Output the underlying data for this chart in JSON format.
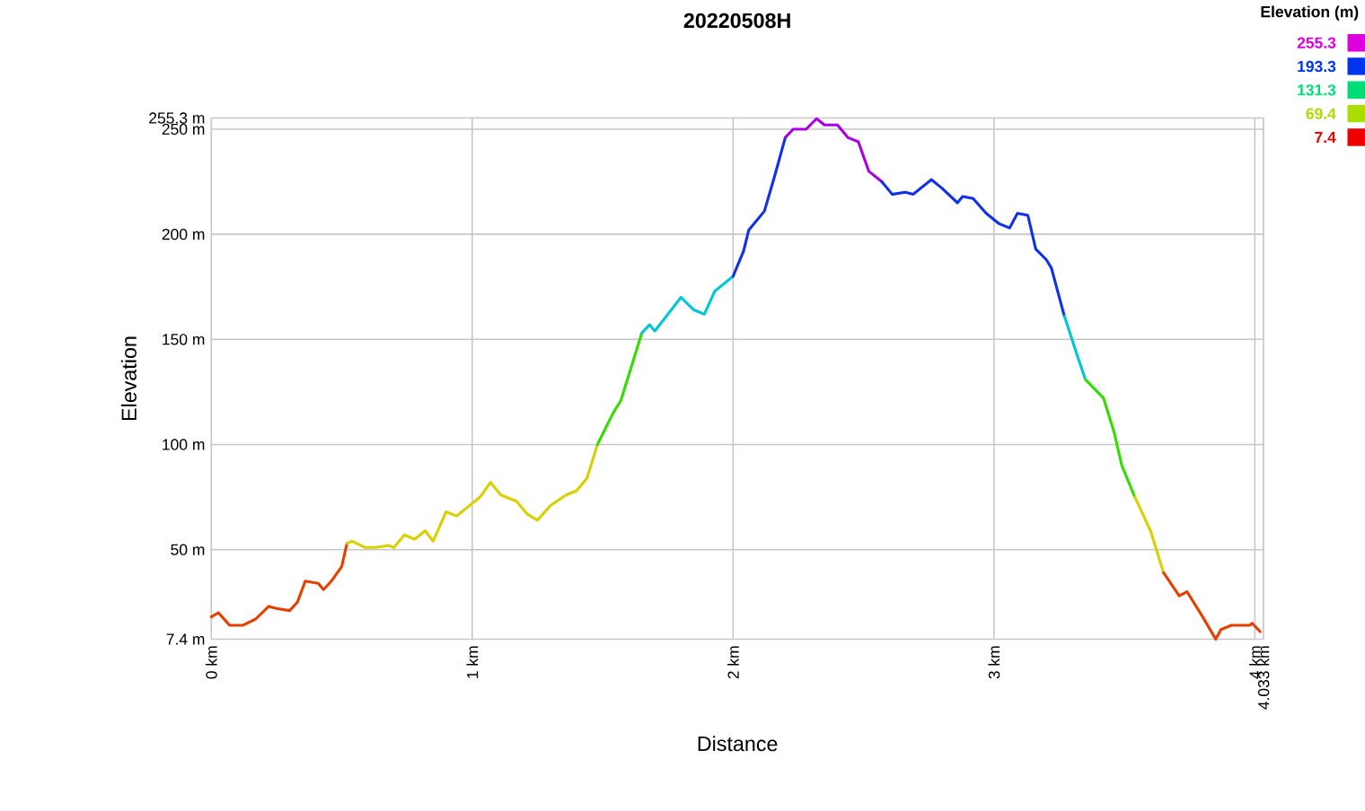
{
  "chart_data": {
    "type": "line",
    "title": "20220508H",
    "xlabel": "Distance",
    "ylabel": "Elevation",
    "clabel": "Elevation (m)",
    "cticks": [
      7.4,
      69.4,
      131.3,
      193.3,
      255.3
    ],
    "colors": [
      "#ee0000",
      "#aadd00",
      "#00dd77",
      "#0033ee",
      "#dd00dd"
    ],
    "xlim": [
      0,
      4.033
    ],
    "ylim": [
      7.4,
      255.3
    ],
    "xticks": [
      {
        "value": 0,
        "label": "0 km"
      },
      {
        "value": 1,
        "label": "1 km"
      },
      {
        "value": 2,
        "label": "2 km"
      },
      {
        "value": 3,
        "label": "3 km"
      },
      {
        "value": 4,
        "label": "4 km"
      },
      {
        "value": 4.033,
        "label": "4.033 km"
      }
    ],
    "yticks": [
      {
        "value": 7.4,
        "label": "7.4 m"
      },
      {
        "value": 50,
        "label": "50 m"
      },
      {
        "value": 100,
        "label": "100 m"
      },
      {
        "value": 150,
        "label": "150 m"
      },
      {
        "value": 200,
        "label": "200 m"
      },
      {
        "value": 250,
        "label": "250 m"
      },
      {
        "value": 255.3,
        "label": "255.3 m"
      }
    ],
    "grid": true,
    "marker": "none",
    "series": [
      {
        "color": "#e64000",
        "x": [
          0,
          0.027,
          0.07,
          0.12,
          0.17,
          0.22,
          0.25,
          0.3,
          0.33,
          0.36,
          0.41,
          0.43,
          0.46,
          0.5,
          0.52
        ],
        "values": [
          18,
          20,
          14,
          14,
          17,
          23,
          22,
          21,
          25,
          35,
          34,
          31,
          35,
          42,
          53
        ]
      },
      {
        "color": "#d8d000",
        "x": [
          0.52,
          0.54,
          0.59,
          0.63,
          0.68,
          0.7,
          0.74,
          0.78,
          0.82,
          0.85,
          0.9,
          0.94,
          1.0,
          1.03,
          1.07,
          1.11,
          1.17,
          1.21,
          1.25,
          1.3,
          1.36,
          1.4,
          1.44,
          1.48
        ],
        "values": [
          53,
          54,
          51,
          51,
          52,
          51,
          57,
          55,
          59,
          54,
          68,
          66,
          72,
          75,
          82,
          76,
          73,
          67,
          64,
          71,
          76,
          78,
          84,
          100
        ]
      },
      {
        "color": "#33dd00",
        "x": [
          1.48,
          1.54,
          1.57,
          1.65
        ],
        "values": [
          100,
          115,
          121,
          153
        ]
      },
      {
        "color": "#00c8d0",
        "x": [
          1.65,
          1.68,
          1.7,
          1.75,
          1.8,
          1.85,
          1.89,
          1.93,
          2.0
        ],
        "values": [
          153,
          157,
          154,
          162,
          170,
          164,
          162,
          173,
          180
        ]
      },
      {
        "color": "#1030ee",
        "x": [
          2.0,
          2.04,
          2.06,
          2.12,
          2.16,
          2.2
        ],
        "values": [
          180,
          192,
          202,
          211,
          228,
          246
        ]
      },
      {
        "color": "#aa00e8",
        "x": [
          2.2,
          2.23,
          2.28,
          2.32,
          2.35,
          2.4,
          2.44,
          2.48,
          2.52,
          2.57
        ],
        "values": [
          246,
          250,
          250,
          255,
          252,
          252,
          246,
          244,
          230,
          225
        ]
      },
      {
        "color": "#1030ee",
        "x": [
          2.57,
          2.61,
          2.66,
          2.69,
          2.76,
          2.8,
          2.86,
          2.88,
          2.92,
          2.97,
          3.02,
          3.06,
          3.09,
          3.13,
          3.16,
          3.2,
          3.22,
          3.27
        ],
        "values": [
          225,
          219,
          220,
          219,
          226,
          222,
          215,
          218,
          217,
          210,
          205,
          203,
          210,
          209,
          193,
          188,
          184,
          161
        ]
      },
      {
        "color": "#00c8d0",
        "x": [
          3.27,
          3.32,
          3.35
        ],
        "values": [
          161,
          142,
          131
        ]
      },
      {
        "color": "#33dd00",
        "x": [
          3.35,
          3.42,
          3.46,
          3.49,
          3.54
        ],
        "values": [
          131,
          122,
          106,
          90,
          75
        ]
      },
      {
        "color": "#d8d000",
        "x": [
          3.54,
          3.6,
          3.65
        ],
        "values": [
          75,
          59,
          39
        ]
      },
      {
        "color": "#e64000",
        "x": [
          3.65,
          3.71,
          3.74,
          3.8,
          3.85,
          3.87,
          3.91,
          3.98,
          3.99,
          4.02
        ],
        "values": [
          39,
          28,
          30,
          18,
          7.4,
          12,
          14,
          14,
          15,
          11
        ]
      }
    ]
  }
}
